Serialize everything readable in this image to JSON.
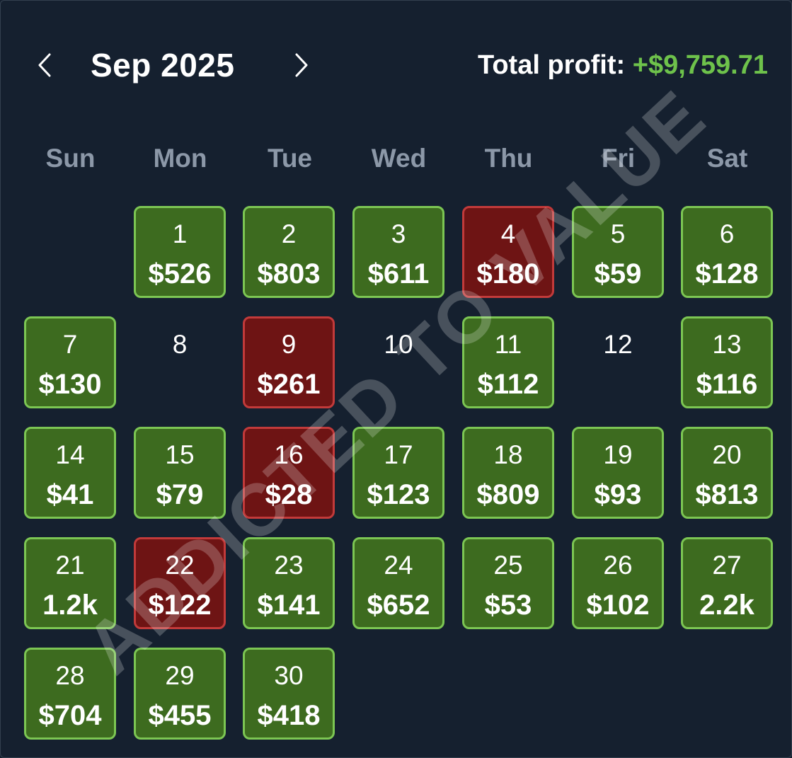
{
  "header": {
    "month_label": "Sep 2025",
    "prev_icon": "chevron-left-icon",
    "next_icon": "chevron-right-icon",
    "total_label": "Total profit:",
    "total_value": "+$9,759.71"
  },
  "weekdays": [
    "Sun",
    "Mon",
    "Tue",
    "Wed",
    "Thu",
    "Fri",
    "Sat"
  ],
  "days": [
    {
      "day": "1",
      "amount": "$526",
      "status": "profit"
    },
    {
      "day": "2",
      "amount": "$803",
      "status": "profit"
    },
    {
      "day": "3",
      "amount": "$611",
      "status": "profit"
    },
    {
      "day": "4",
      "amount": "$180",
      "status": "loss"
    },
    {
      "day": "5",
      "amount": "$59",
      "status": "profit"
    },
    {
      "day": "6",
      "amount": "$128",
      "status": "profit"
    },
    {
      "day": "7",
      "amount": "$130",
      "status": "profit"
    },
    {
      "day": "8",
      "amount": "",
      "status": "empty"
    },
    {
      "day": "9",
      "amount": "$261",
      "status": "loss"
    },
    {
      "day": "10",
      "amount": "",
      "status": "empty"
    },
    {
      "day": "11",
      "amount": "$112",
      "status": "profit"
    },
    {
      "day": "12",
      "amount": "",
      "status": "empty"
    },
    {
      "day": "13",
      "amount": "$116",
      "status": "profit"
    },
    {
      "day": "14",
      "amount": "$41",
      "status": "profit"
    },
    {
      "day": "15",
      "amount": "$79",
      "status": "profit"
    },
    {
      "day": "16",
      "amount": "$28",
      "status": "loss"
    },
    {
      "day": "17",
      "amount": "$123",
      "status": "profit"
    },
    {
      "day": "18",
      "amount": "$809",
      "status": "profit"
    },
    {
      "day": "19",
      "amount": "$93",
      "status": "profit"
    },
    {
      "day": "20",
      "amount": "$813",
      "status": "profit"
    },
    {
      "day": "21",
      "amount": "1.2k",
      "status": "profit"
    },
    {
      "day": "22",
      "amount": "$122",
      "status": "loss"
    },
    {
      "day": "23",
      "amount": "$141",
      "status": "profit"
    },
    {
      "day": "24",
      "amount": "$652",
      "status": "profit"
    },
    {
      "day": "25",
      "amount": "$53",
      "status": "profit"
    },
    {
      "day": "26",
      "amount": "$102",
      "status": "profit"
    },
    {
      "day": "27",
      "amount": "2.2k",
      "status": "profit"
    },
    {
      "day": "28",
      "amount": "$704",
      "status": "profit"
    },
    {
      "day": "29",
      "amount": "$455",
      "status": "profit"
    },
    {
      "day": "30",
      "amount": "$418",
      "status": "profit"
    }
  ],
  "first_weekday_index": 1,
  "watermark": "ADDICTED TO VALUE",
  "colors": {
    "background": "#15202f",
    "profit_fill": "#3d6b1f",
    "profit_border": "#7cc653",
    "loss_fill": "#6e1414",
    "loss_border": "#c23a3a",
    "total_value": "#6ec24b",
    "weekday_text": "#8c98a8"
  }
}
